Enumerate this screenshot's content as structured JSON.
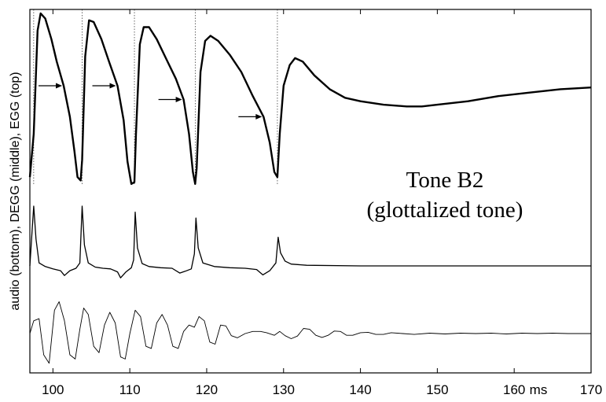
{
  "chart_data": {
    "type": "line",
    "xlim": [
      97,
      170
    ],
    "x_ticks": [
      {
        "value": 100,
        "label": "100"
      },
      {
        "value": 110,
        "label": "110"
      },
      {
        "value": 120,
        "label": "120"
      },
      {
        "value": 130,
        "label": "130"
      },
      {
        "value": 140,
        "label": "140"
      },
      {
        "value": 150,
        "label": "150"
      },
      {
        "value": 160,
        "label": "160"
      },
      {
        "value": 170,
        "label": "170"
      }
    ],
    "x_unit_label": "ms",
    "ylabel": "audio (bottom), DEGG (middle), EGG (top)",
    "annotation": {
      "line1": "Tone B2",
      "line2": "(glottalized tone)"
    },
    "glottal_closures_ms": [
      97.5,
      103.8,
      110.6,
      118.5,
      129.2
    ],
    "opening_arrows_ms": [
      101.4,
      108.4,
      117.0,
      127.4
    ],
    "series": [
      {
        "name": "EGG",
        "points": [
          [
            97.0,
            0.05
          ],
          [
            97.5,
            0.3
          ],
          [
            98.0,
            0.9
          ],
          [
            98.4,
            1.0
          ],
          [
            99.0,
            0.97
          ],
          [
            99.8,
            0.85
          ],
          [
            100.5,
            0.72
          ],
          [
            101.4,
            0.58
          ],
          [
            102.2,
            0.4
          ],
          [
            102.8,
            0.2
          ],
          [
            103.2,
            0.05
          ],
          [
            103.6,
            0.03
          ],
          [
            103.8,
            0.15
          ],
          [
            104.2,
            0.75
          ],
          [
            104.7,
            0.96
          ],
          [
            105.3,
            0.95
          ],
          [
            106.3,
            0.85
          ],
          [
            107.3,
            0.72
          ],
          [
            108.4,
            0.58
          ],
          [
            109.2,
            0.38
          ],
          [
            109.7,
            0.14
          ],
          [
            110.2,
            0.01
          ],
          [
            110.6,
            0.02
          ],
          [
            110.8,
            0.3
          ],
          [
            111.3,
            0.82
          ],
          [
            111.8,
            0.92
          ],
          [
            112.5,
            0.92
          ],
          [
            113.5,
            0.85
          ],
          [
            114.8,
            0.73
          ],
          [
            116.0,
            0.62
          ],
          [
            117.0,
            0.5
          ],
          [
            117.7,
            0.3
          ],
          [
            118.2,
            0.08
          ],
          [
            118.5,
            0.01
          ],
          [
            118.7,
            0.1
          ],
          [
            119.2,
            0.66
          ],
          [
            119.8,
            0.84
          ],
          [
            120.5,
            0.87
          ],
          [
            121.5,
            0.84
          ],
          [
            123.0,
            0.76
          ],
          [
            124.5,
            0.66
          ],
          [
            126.0,
            0.52
          ],
          [
            127.4,
            0.4
          ],
          [
            128.2,
            0.25
          ],
          [
            128.8,
            0.08
          ],
          [
            129.2,
            0.05
          ],
          [
            129.5,
            0.3
          ],
          [
            130.0,
            0.58
          ],
          [
            130.8,
            0.7
          ],
          [
            131.5,
            0.74
          ],
          [
            132.5,
            0.72
          ],
          [
            134.0,
            0.64
          ],
          [
            136.0,
            0.56
          ],
          [
            138.0,
            0.51
          ],
          [
            140.0,
            0.49
          ],
          [
            143.0,
            0.47
          ],
          [
            146.0,
            0.46
          ],
          [
            148.0,
            0.46
          ],
          [
            150.0,
            0.47
          ],
          [
            154.0,
            0.49
          ],
          [
            158.0,
            0.52
          ],
          [
            162.0,
            0.54
          ],
          [
            166.0,
            0.56
          ],
          [
            170.0,
            0.57
          ]
        ]
      },
      {
        "name": "DEGG",
        "points": [
          [
            97.0,
            0.0
          ],
          [
            97.3,
            0.6
          ],
          [
            97.5,
            1.0
          ],
          [
            97.8,
            0.45
          ],
          [
            98.2,
            0.05
          ],
          [
            99.0,
            -0.01
          ],
          [
            100.0,
            -0.05
          ],
          [
            101.0,
            -0.08
          ],
          [
            101.5,
            -0.16
          ],
          [
            102.2,
            -0.08
          ],
          [
            103.0,
            -0.04
          ],
          [
            103.5,
            0.05
          ],
          [
            103.8,
            1.0
          ],
          [
            104.1,
            0.35
          ],
          [
            104.6,
            0.05
          ],
          [
            105.5,
            -0.02
          ],
          [
            106.5,
            -0.04
          ],
          [
            107.5,
            -0.05
          ],
          [
            108.4,
            -0.1
          ],
          [
            108.8,
            -0.2
          ],
          [
            109.5,
            -0.1
          ],
          [
            110.2,
            -0.03
          ],
          [
            110.5,
            0.1
          ],
          [
            110.7,
            0.9
          ],
          [
            111.0,
            0.3
          ],
          [
            111.6,
            0.04
          ],
          [
            112.5,
            -0.01
          ],
          [
            114.0,
            -0.03
          ],
          [
            115.5,
            -0.04
          ],
          [
            116.5,
            -0.12
          ],
          [
            117.2,
            -0.09
          ],
          [
            118.0,
            -0.05
          ],
          [
            118.4,
            0.2
          ],
          [
            118.6,
            0.8
          ],
          [
            118.9,
            0.3
          ],
          [
            119.5,
            0.05
          ],
          [
            121.0,
            -0.01
          ],
          [
            123.0,
            -0.03
          ],
          [
            125.0,
            -0.04
          ],
          [
            126.5,
            -0.06
          ],
          [
            127.3,
            -0.15
          ],
          [
            128.2,
            -0.08
          ],
          [
            129.0,
            0.05
          ],
          [
            129.3,
            0.48
          ],
          [
            129.6,
            0.22
          ],
          [
            130.2,
            0.08
          ],
          [
            131.0,
            0.03
          ],
          [
            133.0,
            0.01
          ],
          [
            140.0,
            0.0
          ],
          [
            150.0,
            0.0
          ],
          [
            160.0,
            0.0
          ],
          [
            170.0,
            0.0
          ]
        ]
      },
      {
        "name": "audio",
        "points": [
          [
            97.0,
            0.0
          ],
          [
            97.5,
            0.3
          ],
          [
            98.2,
            0.35
          ],
          [
            98.8,
            -0.5
          ],
          [
            99.5,
            -0.7
          ],
          [
            100.2,
            0.55
          ],
          [
            100.8,
            0.75
          ],
          [
            101.5,
            0.3
          ],
          [
            102.2,
            -0.5
          ],
          [
            102.9,
            -0.6
          ],
          [
            103.5,
            0.1
          ],
          [
            104.0,
            0.6
          ],
          [
            104.6,
            0.45
          ],
          [
            105.3,
            -0.3
          ],
          [
            106.0,
            -0.45
          ],
          [
            106.7,
            0.2
          ],
          [
            107.4,
            0.5
          ],
          [
            108.1,
            0.25
          ],
          [
            108.8,
            -0.55
          ],
          [
            109.4,
            -0.6
          ],
          [
            110.0,
            0.0
          ],
          [
            110.7,
            0.55
          ],
          [
            111.4,
            0.4
          ],
          [
            112.1,
            -0.3
          ],
          [
            112.8,
            -0.35
          ],
          [
            113.5,
            0.25
          ],
          [
            114.2,
            0.45
          ],
          [
            114.9,
            0.2
          ],
          [
            115.6,
            -0.3
          ],
          [
            116.3,
            -0.35
          ],
          [
            117.0,
            0.05
          ],
          [
            117.7,
            0.2
          ],
          [
            118.4,
            0.15
          ],
          [
            119.0,
            0.4
          ],
          [
            119.7,
            0.3
          ],
          [
            120.4,
            -0.2
          ],
          [
            121.1,
            -0.25
          ],
          [
            121.8,
            0.2
          ],
          [
            122.5,
            0.18
          ],
          [
            123.2,
            -0.05
          ],
          [
            124.0,
            -0.1
          ],
          [
            125.0,
            0.0
          ],
          [
            126.0,
            0.05
          ],
          [
            127.0,
            0.05
          ],
          [
            127.8,
            0.02
          ],
          [
            128.8,
            -0.04
          ],
          [
            129.5,
            0.05
          ],
          [
            130.2,
            -0.05
          ],
          [
            131.0,
            -0.12
          ],
          [
            131.8,
            -0.06
          ],
          [
            132.6,
            0.12
          ],
          [
            133.4,
            0.1
          ],
          [
            134.2,
            -0.04
          ],
          [
            135.0,
            -0.09
          ],
          [
            135.8,
            -0.04
          ],
          [
            136.6,
            0.06
          ],
          [
            137.4,
            0.05
          ],
          [
            138.2,
            -0.04
          ],
          [
            139.0,
            -0.04
          ],
          [
            140.0,
            0.02
          ],
          [
            141.0,
            0.03
          ],
          [
            142.0,
            -0.02
          ],
          [
            143.0,
            -0.02
          ],
          [
            144.0,
            0.02
          ],
          [
            145.5,
            0.0
          ],
          [
            147.0,
            -0.02
          ],
          [
            149.0,
            0.01
          ],
          [
            151.0,
            -0.01
          ],
          [
            153.0,
            0.01
          ],
          [
            155.0,
            0.0
          ],
          [
            157.0,
            0.01
          ],
          [
            159.0,
            -0.01
          ],
          [
            161.0,
            0.01
          ],
          [
            163.0,
            0.0
          ],
          [
            165.0,
            0.01
          ],
          [
            167.0,
            0.0
          ],
          [
            170.0,
            0.0
          ]
        ]
      }
    ]
  }
}
